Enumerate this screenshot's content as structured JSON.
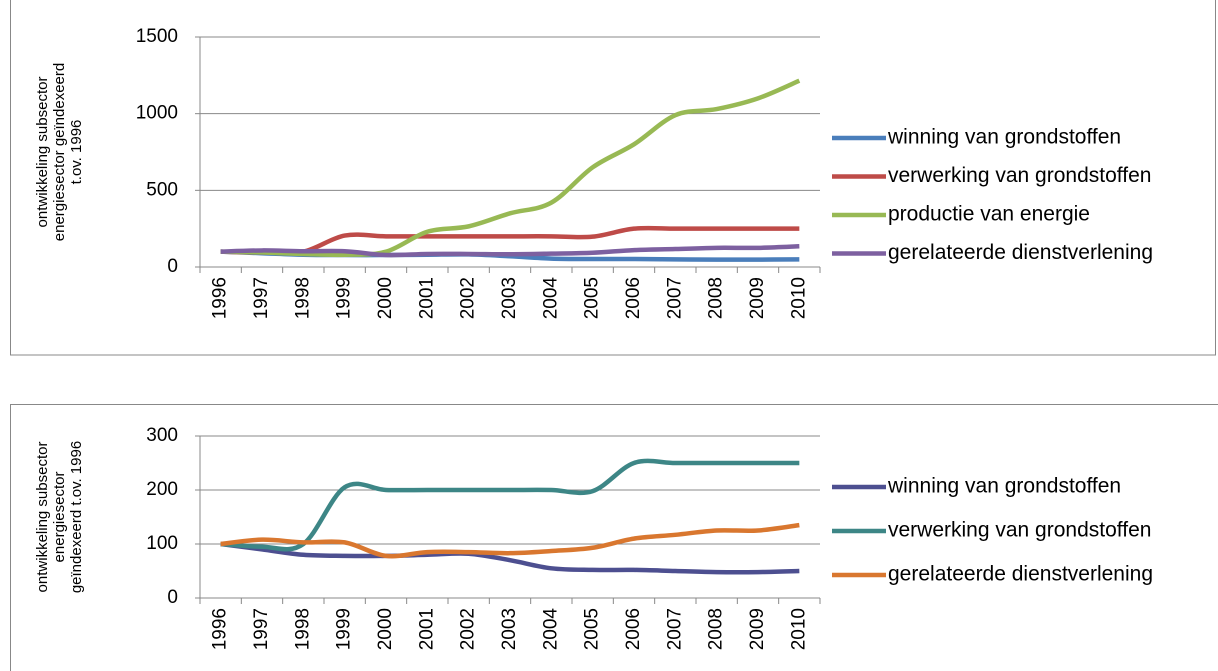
{
  "chart_data": [
    {
      "type": "line",
      "ylabel_lines": [
        "ontwikkeling subsector",
        "energiesector geïndexeerd",
        "t.ov. 1996"
      ],
      "categories": [
        "1996",
        "1997",
        "1998",
        "1999",
        "2000",
        "2001",
        "2002",
        "2003",
        "2004",
        "2005",
        "2006",
        "2007",
        "2008",
        "2009",
        "2010"
      ],
      "series": [
        {
          "name": "winning van grondstoffen",
          "color": "#4a7ebb",
          "values": [
            100,
            90,
            80,
            78,
            78,
            80,
            82,
            70,
            55,
            52,
            52,
            50,
            48,
            48,
            50
          ]
        },
        {
          "name": "verwerking van grondstoffen",
          "color": "#be4b48",
          "values": [
            100,
            95,
            100,
            205,
            200,
            200,
            200,
            200,
            200,
            198,
            250,
            250,
            250,
            250,
            250
          ]
        },
        {
          "name": "productie van energie",
          "color": "#98b954",
          "values": [
            100,
            95,
            85,
            80,
            100,
            230,
            265,
            350,
            420,
            650,
            800,
            990,
            1030,
            1100,
            1215
          ]
        },
        {
          "name": "gerelateerde dienstverlening",
          "color": "#7d60a0",
          "values": [
            100,
            108,
            103,
            103,
            78,
            85,
            85,
            83,
            87,
            93,
            110,
            117,
            125,
            125,
            135
          ]
        }
      ],
      "ylim": [
        0,
        1500
      ],
      "yticks": [
        0,
        500,
        1000,
        1500
      ],
      "grid": true,
      "legend": "right"
    },
    {
      "type": "line",
      "ylabel_lines": [
        "ontwikkeling subsector",
        "energiesector",
        "geïndexeerd t.ov. 1996"
      ],
      "categories": [
        "1996",
        "1997",
        "1998",
        "1999",
        "2000",
        "2001",
        "2002",
        "2003",
        "2004",
        "2005",
        "2006",
        "2007",
        "2008",
        "2009",
        "2010"
      ],
      "series": [
        {
          "name": "winning van grondstoffen",
          "color": "#4d4f90",
          "values": [
            100,
            90,
            80,
            78,
            78,
            80,
            82,
            70,
            55,
            52,
            52,
            50,
            48,
            48,
            50
          ]
        },
        {
          "name": "verwerking van grondstoffen",
          "color": "#3d8686",
          "values": [
            100,
            95,
            100,
            205,
            200,
            200,
            200,
            200,
            200,
            198,
            250,
            250,
            250,
            250,
            250
          ]
        },
        {
          "name": "gerelateerde dienstverlening",
          "color": "#d9772f",
          "values": [
            100,
            108,
            103,
            103,
            78,
            85,
            85,
            83,
            87,
            93,
            110,
            117,
            125,
            125,
            135
          ]
        }
      ],
      "ylim": [
        0,
        300
      ],
      "yticks": [
        0,
        100,
        200,
        300
      ],
      "grid": true,
      "legend": "right"
    }
  ]
}
